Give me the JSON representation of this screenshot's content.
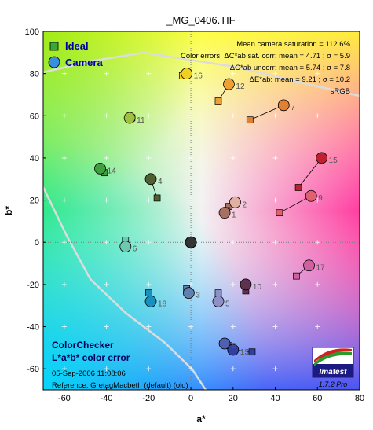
{
  "chart_data": {
    "type": "scatter",
    "title": "_MG_0406.TIF",
    "xlabel": "a*",
    "ylabel": "b*",
    "xlim": [
      -70,
      80
    ],
    "ylim": [
      -70,
      100
    ],
    "xticks": [
      -60,
      -40,
      -20,
      0,
      20,
      40,
      60,
      80
    ],
    "yticks": [
      -60,
      -40,
      -20,
      0,
      20,
      40,
      60,
      80,
      100
    ],
    "grid": true,
    "legend": {
      "placement": "top-left",
      "entries": [
        {
          "label": "Ideal",
          "marker": "square"
        },
        {
          "label": "Camera",
          "marker": "circle"
        }
      ]
    },
    "stats": [
      "Mean camera saturation = 112.6%",
      "Color errors:  ΔC*ab sat. corr:  mean = 4.71 ;  σ = 5.9",
      "ΔC*ab uncorr:  mean = 5.74 ;  σ = 7.8",
      "ΔE*ab:  mean = 9.21 ;  σ = 10.2",
      "sRGB"
    ],
    "bottom_left_title": [
      "ColorChecker",
      "L*a*b* color error"
    ],
    "date_line": "05-Sep-2006 11:08:06",
    "reference_line": "Reference: GretagMacbeth (default) (old)",
    "logo_text": "Imatest",
    "version_text": "1.7.2  Pro",
    "patches": [
      {
        "id": "1",
        "ideal": [
          18,
          17
        ],
        "camera": [
          16,
          14
        ],
        "color": "#a87060"
      },
      {
        "id": "2",
        "ideal": [
          17,
          15
        ],
        "camera": [
          21,
          19
        ],
        "color": "#e0b0a0"
      },
      {
        "id": "3",
        "ideal": [
          -2,
          -22
        ],
        "camera": [
          -1,
          -24
        ],
        "color": "#6080b0"
      },
      {
        "id": "4",
        "ideal": [
          -16,
          21
        ],
        "camera": [
          -19,
          30
        ],
        "color": "#506030"
      },
      {
        "id": "5",
        "ideal": [
          13,
          -24
        ],
        "camera": [
          13,
          -28
        ],
        "color": "#9090c8"
      },
      {
        "id": "6",
        "ideal": [
          -31,
          1
        ],
        "camera": [
          -31,
          -2
        ],
        "color": "#70c8b0"
      },
      {
        "id": "7",
        "ideal": [
          28,
          58
        ],
        "camera": [
          44,
          65
        ],
        "color": "#e08030"
      },
      {
        "id": "8",
        "ideal": [
          18,
          -49
        ],
        "camera": [
          16,
          -48
        ],
        "color": "#5060b0"
      },
      {
        "id": "9",
        "ideal": [
          42,
          14
        ],
        "camera": [
          57,
          22
        ],
        "color": "#e06070"
      },
      {
        "id": "10",
        "ideal": [
          26,
          -23
        ],
        "camera": [
          26,
          -20
        ],
        "color": "#603050"
      },
      {
        "id": "11",
        "ideal": [
          -28,
          59
        ],
        "camera": [
          -29,
          59
        ],
        "color": "#a0c040"
      },
      {
        "id": "12",
        "ideal": [
          13,
          67
        ],
        "camera": [
          18,
          75
        ],
        "color": "#f0a030"
      },
      {
        "id": "13",
        "ideal": [
          29,
          -52
        ],
        "camera": [
          20,
          -51
        ],
        "color": "#3040a0"
      },
      {
        "id": "14",
        "ideal": [
          -41,
          33
        ],
        "camera": [
          -43,
          35
        ],
        "color": "#40a040"
      },
      {
        "id": "15",
        "ideal": [
          51,
          26
        ],
        "camera": [
          62,
          40
        ],
        "color": "#c02030"
      },
      {
        "id": "16",
        "ideal": [
          -4,
          79
        ],
        "camera": [
          -2,
          80
        ],
        "color": "#f0d020"
      },
      {
        "id": "17",
        "ideal": [
          50,
          -16
        ],
        "camera": [
          56,
          -11
        ],
        "color": "#d060a0"
      },
      {
        "id": "18",
        "ideal": [
          -20,
          -24
        ],
        "camera": [
          -19,
          -28
        ],
        "color": "#1890c0"
      },
      {
        "id": "19",
        "ideal": [
          0,
          0
        ],
        "camera": [
          0,
          0
        ],
        "color": "#f4f4f4"
      },
      {
        "id": "20",
        "ideal": [
          0,
          0
        ],
        "camera": [
          0,
          0
        ],
        "color": "#c8c8c8"
      },
      {
        "id": "21",
        "ideal": [
          0,
          0
        ],
        "camera": [
          0,
          0
        ],
        "color": "#a0a0a0"
      },
      {
        "id": "22",
        "ideal": [
          0,
          0
        ],
        "camera": [
          0,
          0
        ],
        "color": "#787878"
      },
      {
        "id": "23",
        "ideal": [
          0,
          0
        ],
        "camera": [
          0,
          0
        ],
        "color": "#555555"
      },
      {
        "id": "24",
        "ideal": [
          0,
          0
        ],
        "camera": [
          0,
          0
        ],
        "color": "#343434"
      }
    ]
  }
}
